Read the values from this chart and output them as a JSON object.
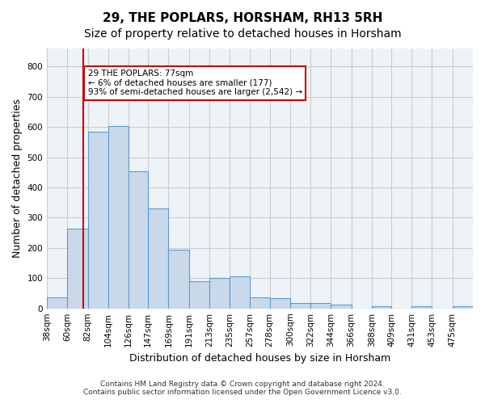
{
  "title": "29, THE POPLARS, HORSHAM, RH13 5RH",
  "subtitle": "Size of property relative to detached houses in Horsham",
  "xlabel": "Distribution of detached houses by size in Horsham",
  "ylabel": "Number of detached properties",
  "footer_line1": "Contains HM Land Registry data © Crown copyright and database right 2024.",
  "footer_line2": "Contains public sector information licensed under the Open Government Licence v3.0.",
  "bar_edges": [
    38,
    60,
    82,
    104,
    126,
    147,
    169,
    191,
    213,
    235,
    257,
    278,
    300,
    322,
    344,
    366,
    388,
    409,
    431,
    453,
    475
  ],
  "bar_heights": [
    37,
    265,
    585,
    603,
    453,
    330,
    195,
    90,
    102,
    105,
    37,
    33,
    18,
    18,
    12,
    0,
    6,
    0,
    6,
    0,
    7
  ],
  "bar_color": "#c9d9ea",
  "bar_edge_color": "#5b9bd5",
  "property_value": 77,
  "annotation_text": "29 THE POPLARS: 77sqm\n← 6% of detached houses are smaller (177)\n93% of semi-detached houses are larger (2,542) →",
  "vline_color": "#cc0000",
  "annotation_box_edge_color": "#cc0000",
  "annotation_box_face_color": "white",
  "ylim": [
    0,
    860
  ],
  "yticks": [
    0,
    100,
    200,
    300,
    400,
    500,
    600,
    700,
    800
  ],
  "grid_color": "#cccccc",
  "bg_color": "#eef3f8",
  "title_fontsize": 11,
  "subtitle_fontsize": 10,
  "tick_label_fontsize": 7.5
}
